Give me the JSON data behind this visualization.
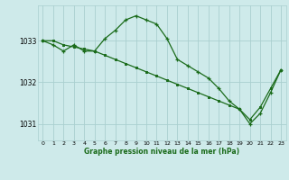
{
  "xlabel": "Graphe pression niveau de la mer (hPa)",
  "background_color": "#ceeaea",
  "grid_color": "#aacfcf",
  "line_color": "#1a6b1a",
  "x_ticks": [
    0,
    1,
    2,
    3,
    4,
    5,
    6,
    7,
    8,
    9,
    10,
    11,
    12,
    13,
    14,
    15,
    16,
    17,
    18,
    19,
    20,
    21,
    22,
    23
  ],
  "ylim": [
    1030.6,
    1033.85
  ],
  "yticks": [
    1031,
    1032,
    1033
  ],
  "series1_x": [
    0,
    1,
    2,
    3,
    4,
    5,
    6,
    7,
    8,
    9,
    10,
    11,
    12,
    13,
    14,
    15,
    16,
    17,
    18,
    19,
    20,
    21,
    22,
    23
  ],
  "series1_y": [
    1033.0,
    1032.9,
    1032.75,
    1032.9,
    1032.75,
    1032.75,
    1033.05,
    1033.25,
    1033.5,
    1033.6,
    1033.5,
    1033.4,
    1033.05,
    1032.55,
    1032.4,
    1032.25,
    1032.1,
    1031.85,
    1031.55,
    1031.35,
    1031.0,
    1031.25,
    1031.75,
    1032.3
  ],
  "series2_x": [
    0,
    1,
    2,
    3,
    4,
    5,
    6,
    7,
    8,
    9,
    10,
    11,
    12,
    13,
    14,
    15,
    16,
    17,
    18,
    19,
    20,
    21,
    22,
    23
  ],
  "series2_y": [
    1033.0,
    1033.0,
    1032.9,
    1032.85,
    1032.8,
    1032.75,
    1032.65,
    1032.55,
    1032.45,
    1032.35,
    1032.25,
    1032.15,
    1032.05,
    1031.95,
    1031.85,
    1031.75,
    1031.65,
    1031.55,
    1031.45,
    1031.35,
    1031.1,
    1031.4,
    1031.85,
    1032.3
  ]
}
